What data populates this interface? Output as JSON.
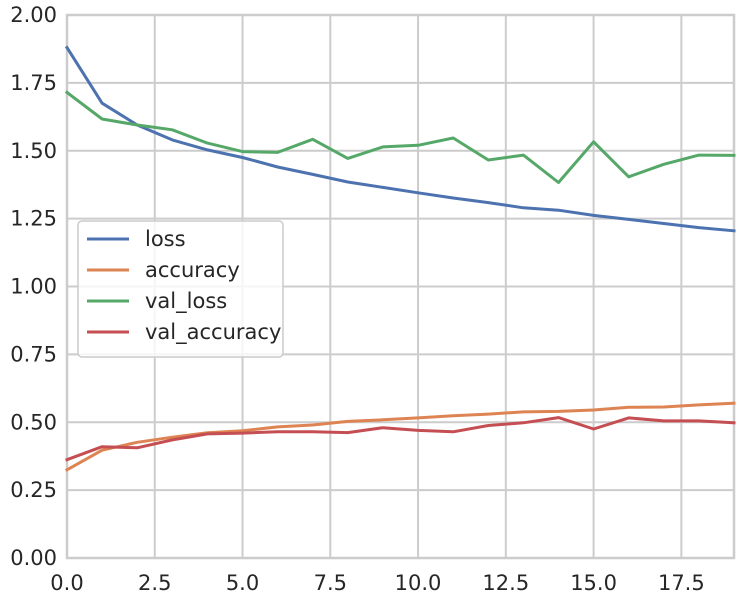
{
  "chart_data": {
    "type": "line",
    "title": "",
    "xlabel": "",
    "ylabel": "",
    "xlim": [
      0,
      19
    ],
    "ylim": [
      0,
      2
    ],
    "x_ticks": [
      "0.0",
      "2.5",
      "5.0",
      "7.5",
      "10.0",
      "12.5",
      "15.0",
      "17.5"
    ],
    "y_ticks": [
      "0.00",
      "0.25",
      "0.50",
      "0.75",
      "1.00",
      "1.25",
      "1.50",
      "1.75",
      "2.00"
    ],
    "grid": true,
    "legend_position": "center-left",
    "x": [
      0,
      1,
      2,
      3,
      4,
      5,
      6,
      7,
      8,
      9,
      10,
      11,
      12,
      13,
      14,
      15,
      16,
      17,
      18,
      19
    ],
    "series": [
      {
        "name": "loss",
        "color": "#4C72B0",
        "values": [
          1.88,
          1.675,
          1.595,
          1.54,
          1.503,
          1.475,
          1.44,
          1.413,
          1.385,
          1.365,
          1.345,
          1.326,
          1.309,
          1.29,
          1.281,
          1.262,
          1.247,
          1.232,
          1.217,
          1.205
        ]
      },
      {
        "name": "accuracy",
        "color": "#DD8452",
        "values": [
          0.325,
          0.397,
          0.426,
          0.445,
          0.461,
          0.469,
          0.483,
          0.49,
          0.503,
          0.509,
          0.516,
          0.524,
          0.53,
          0.538,
          0.54,
          0.545,
          0.555,
          0.556,
          0.564,
          0.57
        ]
      },
      {
        "name": "val_loss",
        "color": "#55A868",
        "values": [
          1.715,
          1.617,
          1.595,
          1.577,
          1.528,
          1.497,
          1.494,
          1.542,
          1.472,
          1.514,
          1.52,
          1.547,
          1.466,
          1.484,
          1.383,
          1.533,
          1.404,
          1.45,
          1.484,
          1.483
        ]
      },
      {
        "name": "val_accuracy",
        "color": "#C44E52",
        "values": [
          0.362,
          0.41,
          0.406,
          0.435,
          0.457,
          0.46,
          0.465,
          0.465,
          0.462,
          0.48,
          0.47,
          0.465,
          0.488,
          0.498,
          0.517,
          0.475,
          0.516,
          0.505,
          0.505,
          0.498
        ]
      }
    ]
  }
}
